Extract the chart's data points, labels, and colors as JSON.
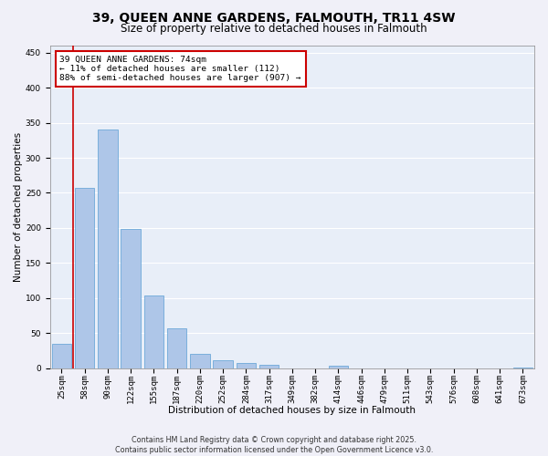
{
  "title_line1": "39, QUEEN ANNE GARDENS, FALMOUTH, TR11 4SW",
  "title_line2": "Size of property relative to detached houses in Falmouth",
  "xlabel": "Distribution of detached houses by size in Falmouth",
  "ylabel": "Number of detached properties",
  "categories": [
    "25sqm",
    "58sqm",
    "90sqm",
    "122sqm",
    "155sqm",
    "187sqm",
    "220sqm",
    "252sqm",
    "284sqm",
    "317sqm",
    "349sqm",
    "382sqm",
    "414sqm",
    "446sqm",
    "479sqm",
    "511sqm",
    "543sqm",
    "576sqm",
    "608sqm",
    "641sqm",
    "673sqm"
  ],
  "values": [
    35,
    257,
    340,
    198,
    104,
    57,
    20,
    11,
    7,
    5,
    0,
    0,
    3,
    0,
    0,
    0,
    0,
    0,
    0,
    0,
    1
  ],
  "bar_color": "#aec6e8",
  "bar_edge_color": "#5a9fd4",
  "vline_color": "#cc0000",
  "annotation_text": "39 QUEEN ANNE GARDENS: 74sqm\n← 11% of detached houses are smaller (112)\n88% of semi-detached houses are larger (907) →",
  "annotation_box_color": "#cc0000",
  "ylim": [
    0,
    460
  ],
  "yticks": [
    0,
    50,
    100,
    150,
    200,
    250,
    300,
    350,
    400,
    450
  ],
  "background_color": "#e8eef8",
  "grid_color": "#ffffff",
  "footer_text": "Contains HM Land Registry data © Crown copyright and database right 2025.\nContains public sector information licensed under the Open Government Licence v3.0.",
  "title_fontsize": 10,
  "subtitle_fontsize": 8.5,
  "axis_label_fontsize": 7.5,
  "tick_fontsize": 6.5,
  "annotation_fontsize": 6.8,
  "footer_fontsize": 5.8
}
